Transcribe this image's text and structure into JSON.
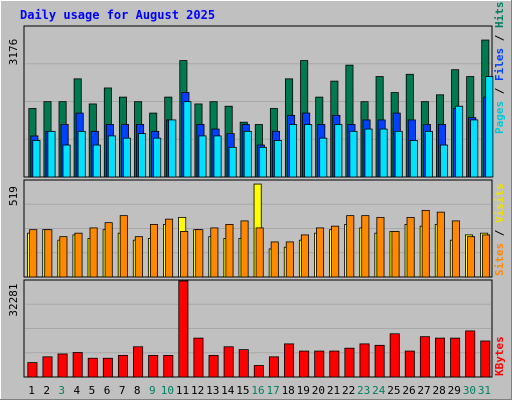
{
  "chart_data": [
    {
      "type": "bar",
      "title": "Daily usage for August 2025",
      "panel": "top",
      "y_tick_label": "3176",
      "ylim": [
        0,
        3176
      ],
      "grid": true,
      "categories": [
        "1",
        "2",
        "3",
        "4",
        "5",
        "6",
        "7",
        "8",
        "9",
        "10",
        "11",
        "12",
        "13",
        "14",
        "15",
        "16",
        "17",
        "18",
        "19",
        "20",
        "21",
        "22",
        "23",
        "24",
        "25",
        "26",
        "27",
        "28",
        "29",
        "30",
        "31"
      ],
      "legend": [
        {
          "text": "Pages",
          "color": "#00c8d8"
        },
        {
          "text": "/",
          "color": "#000000"
        },
        {
          "text": "Files",
          "color": "#0040ff"
        },
        {
          "text": "/",
          "color": "#000000"
        },
        {
          "text": "Hits",
          "color": "#008060"
        }
      ],
      "series": [
        {
          "name": "Hits",
          "color": "#007850",
          "values": [
            1500,
            1650,
            1650,
            2150,
            1600,
            1950,
            1750,
            1650,
            1400,
            1750,
            2550,
            1600,
            1650,
            1550,
            1200,
            1150,
            1500,
            2150,
            2550,
            1750,
            2100,
            2450,
            1650,
            2200,
            1850,
            2250,
            1650,
            1800,
            2350,
            2200,
            3000
          ]
        },
        {
          "name": "Files",
          "color": "#0040ff",
          "values": [
            900,
            1000,
            1150,
            1400,
            1000,
            1150,
            1150,
            1150,
            1000,
            1250,
            1850,
            1150,
            1050,
            950,
            1150,
            700,
            1000,
            1350,
            1400,
            1150,
            1350,
            1150,
            1250,
            1250,
            1400,
            1250,
            1150,
            1150,
            1500,
            1300,
            1750
          ]
        },
        {
          "name": "Pages",
          "color": "#00e0ff",
          "values": [
            800,
            1000,
            700,
            1000,
            700,
            900,
            850,
            950,
            850,
            1250,
            1650,
            900,
            900,
            650,
            1000,
            650,
            800,
            1150,
            1150,
            850,
            1150,
            1000,
            1050,
            1050,
            1000,
            800,
            1000,
            700,
            1550,
            1250,
            2200
          ]
        }
      ]
    },
    {
      "type": "bar",
      "panel": "middle",
      "y_tick_label": "519",
      "ylim": [
        0,
        519
      ],
      "grid": true,
      "legend": [
        {
          "text": "Sites",
          "color": "#ff8800"
        },
        {
          "text": "/",
          "color": "#000000"
        },
        {
          "text": "Visits",
          "color": "#f0e000"
        }
      ],
      "series": [
        {
          "name": "Visits",
          "color": "#ffff00",
          "values": [
            250,
            270,
            210,
            240,
            220,
            270,
            250,
            210,
            220,
            300,
            340,
            270,
            230,
            220,
            220,
            530,
            160,
            170,
            210,
            250,
            270,
            300,
            280,
            250,
            260,
            300,
            290,
            300,
            210,
            240,
            250
          ]
        },
        {
          "name": "Sites",
          "color": "#ff8800",
          "values": [
            270,
            270,
            230,
            250,
            280,
            310,
            350,
            230,
            300,
            330,
            260,
            270,
            280,
            300,
            320,
            280,
            200,
            200,
            240,
            280,
            290,
            350,
            350,
            340,
            260,
            340,
            380,
            370,
            320,
            230,
            240
          ]
        }
      ]
    },
    {
      "type": "bar",
      "panel": "bottom",
      "y_tick_label": "32281",
      "ylim": [
        0,
        32281
      ],
      "grid": true,
      "legend": [
        {
          "text": "KBytes",
          "color": "#ff0000"
        }
      ],
      "series": [
        {
          "name": "KBytes",
          "color": "#ff0000",
          "values": [
            5000,
            7000,
            8000,
            8500,
            6500,
            6500,
            7500,
            10500,
            7500,
            7500,
            33500,
            13500,
            7500,
            10500,
            9500,
            4000,
            7000,
            11500,
            9000,
            9000,
            9000,
            10000,
            11500,
            11000,
            15000,
            9000,
            14000,
            13500,
            13500,
            16000,
            12500
          ]
        }
      ]
    }
  ],
  "x_labels": [
    {
      "text": "1",
      "color": "#000000"
    },
    {
      "text": "2",
      "color": "#000000"
    },
    {
      "text": "3",
      "color": "#008060"
    },
    {
      "text": "4",
      "color": "#000000"
    },
    {
      "text": "5",
      "color": "#000000"
    },
    {
      "text": "6",
      "color": "#000000"
    },
    {
      "text": "7",
      "color": "#000000"
    },
    {
      "text": "8",
      "color": "#000000"
    },
    {
      "text": "9",
      "color": "#008060"
    },
    {
      "text": "10",
      "color": "#008060"
    },
    {
      "text": "11",
      "color": "#000000"
    },
    {
      "text": "12",
      "color": "#000000"
    },
    {
      "text": "13",
      "color": "#000000"
    },
    {
      "text": "14",
      "color": "#000000"
    },
    {
      "text": "15",
      "color": "#000000"
    },
    {
      "text": "16",
      "color": "#008060"
    },
    {
      "text": "17",
      "color": "#008060"
    },
    {
      "text": "18",
      "color": "#000000"
    },
    {
      "text": "19",
      "color": "#000000"
    },
    {
      "text": "20",
      "color": "#000000"
    },
    {
      "text": "21",
      "color": "#000000"
    },
    {
      "text": "22",
      "color": "#000000"
    },
    {
      "text": "23",
      "color": "#008060"
    },
    {
      "text": "24",
      "color": "#008060"
    },
    {
      "text": "25",
      "color": "#000000"
    },
    {
      "text": "26",
      "color": "#000000"
    },
    {
      "text": "27",
      "color": "#000000"
    },
    {
      "text": "28",
      "color": "#000000"
    },
    {
      "text": "29",
      "color": "#000000"
    },
    {
      "text": "30",
      "color": "#008060"
    },
    {
      "text": "31",
      "color": "#008060"
    }
  ]
}
